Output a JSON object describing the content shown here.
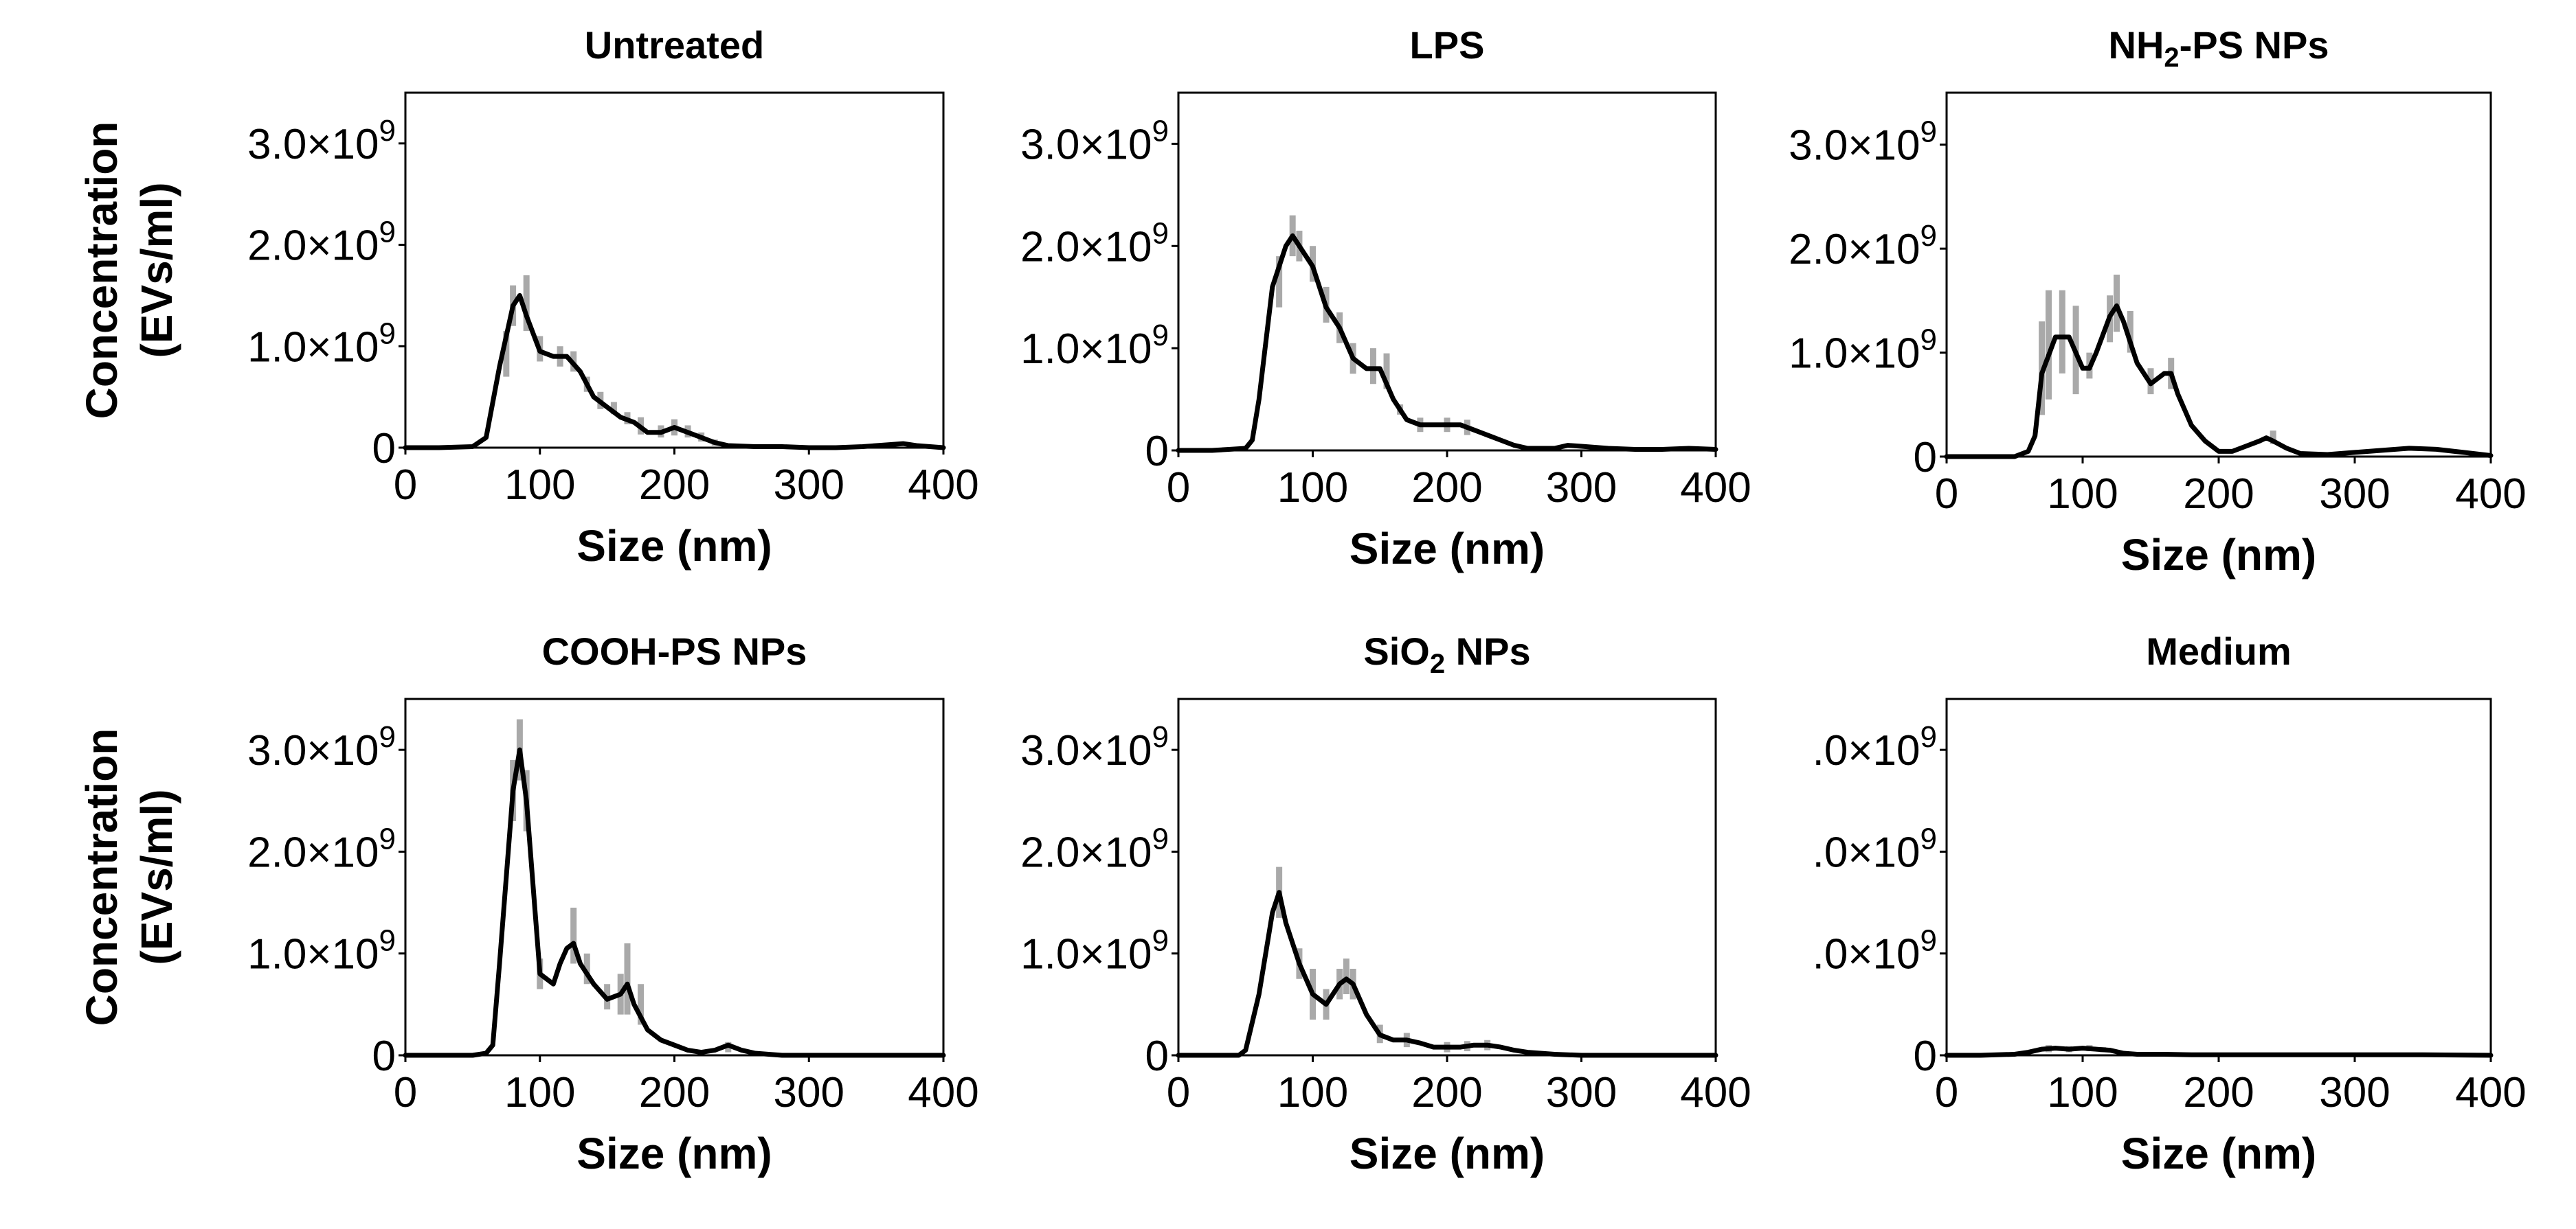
{
  "figure": {
    "description_colors": {
      "mean_line": "#000000",
      "error_bars": "#a9a9a9",
      "background": "#ffffff"
    }
  },
  "chart_data": [
    {
      "type": "line",
      "title_parts": [
        {
          "text": "Untreated"
        }
      ],
      "xlabel": "Size (nm)",
      "ylabel_lines": [
        "Concentration",
        "(EVs/ml)"
      ],
      "xlim": [
        0,
        400
      ],
      "ylim": [
        0,
        3500000000.0
      ],
      "xticks": [
        0,
        100,
        200,
        300,
        400
      ],
      "xtick_labels": [
        "0",
        "100",
        "200",
        "300",
        "400"
      ],
      "yticks": [
        0,
        1000000000.0,
        2000000000.0,
        3000000000.0
      ],
      "ytick_labels": [
        {
          "text": "0"
        },
        {
          "base": "1.0×10",
          "exp": "9"
        },
        {
          "base": "2.0×10",
          "exp": "9"
        },
        {
          "base": "3.0×10",
          "exp": "9"
        }
      ],
      "grid": false,
      "series": [
        {
          "name": "mean",
          "x": [
            0,
            25,
            50,
            60,
            70,
            80,
            85,
            90,
            100,
            110,
            120,
            130,
            140,
            150,
            160,
            170,
            180,
            190,
            200,
            210,
            220,
            230,
            240,
            260,
            280,
            300,
            320,
            340,
            360,
            370,
            380,
            400
          ],
          "y": [
            0,
            0,
            10000000.0,
            100000000.0,
            800000000.0,
            1400000000.0,
            1500000000.0,
            1300000000.0,
            950000000.0,
            900000000.0,
            900000000.0,
            750000000.0,
            500000000.0,
            400000000.0,
            300000000.0,
            250000000.0,
            150000000.0,
            150000000.0,
            200000000.0,
            150000000.0,
            100000000.0,
            50000000.0,
            20000000.0,
            10000000.0,
            10000000.0,
            0,
            0,
            10000000.0,
            30000000.0,
            40000000.0,
            20000000.0,
            0
          ]
        }
      ],
      "error_bars": {
        "x": [
          75,
          80,
          90,
          100,
          115,
          125,
          135,
          145,
          155,
          165,
          175,
          190,
          200,
          210,
          220,
          230
        ],
        "low": [
          700000000.0,
          1200000000.0,
          1150000000.0,
          850000000.0,
          800000000.0,
          750000000.0,
          550000000.0,
          380000000.0,
          330000000.0,
          230000000.0,
          130000000.0,
          100000000.0,
          120000000.0,
          100000000.0,
          60000000.0,
          20000000.0
        ],
        "high": [
          1150000000.0,
          1600000000.0,
          1700000000.0,
          1100000000.0,
          1000000000.0,
          950000000.0,
          700000000.0,
          550000000.0,
          450000000.0,
          350000000.0,
          300000000.0,
          220000000.0,
          280000000.0,
          220000000.0,
          150000000.0,
          80000000.0
        ]
      }
    },
    {
      "type": "line",
      "title_parts": [
        {
          "text": "LPS"
        }
      ],
      "xlabel": "Size (nm)",
      "ylabel_lines": [],
      "xlim": [
        0,
        400
      ],
      "ylim": [
        0,
        3500000000.0
      ],
      "xticks": [
        0,
        100,
        200,
        300,
        400
      ],
      "xtick_labels": [
        "0",
        "100",
        "200",
        "300",
        "400"
      ],
      "yticks": [
        0,
        1000000000.0,
        2000000000.0,
        3000000000.0
      ],
      "ytick_labels": [
        {
          "text": "0"
        },
        {
          "base": "1.0×10",
          "exp": "9"
        },
        {
          "base": "2.0×10",
          "exp": "9"
        },
        {
          "base": "3.0×10",
          "exp": "9"
        }
      ],
      "grid": false,
      "series": [
        {
          "name": "mean",
          "x": [
            0,
            25,
            50,
            55,
            60,
            70,
            80,
            85,
            90,
            100,
            110,
            120,
            130,
            140,
            150,
            160,
            170,
            180,
            190,
            200,
            210,
            220,
            230,
            240,
            250,
            260,
            280,
            290,
            300,
            320,
            340,
            360,
            380,
            400
          ],
          "y": [
            0,
            0,
            20000000.0,
            100000000.0,
            500000000.0,
            1600000000.0,
            2000000000.0,
            2100000000.0,
            2000000000.0,
            1800000000.0,
            1400000000.0,
            1200000000.0,
            900000000.0,
            800000000.0,
            800000000.0,
            500000000.0,
            300000000.0,
            250000000.0,
            250000000.0,
            250000000.0,
            250000000.0,
            200000000.0,
            150000000.0,
            100000000.0,
            50000000.0,
            20000000.0,
            20000000.0,
            50000000.0,
            40000000.0,
            20000000.0,
            10000000.0,
            10000000.0,
            20000000.0,
            10000000.0
          ]
        }
      ],
      "error_bars": {
        "x": [
          75,
          85,
          90,
          100,
          110,
          120,
          130,
          145,
          155,
          165,
          180,
          200,
          215
        ],
        "low": [
          1400000000.0,
          1900000000.0,
          1850000000.0,
          1650000000.0,
          1250000000.0,
          1050000000.0,
          750000000.0,
          650000000.0,
          600000000.0,
          350000000.0,
          180000000.0,
          180000000.0,
          150000000.0
        ],
        "high": [
          1900000000.0,
          2300000000.0,
          2150000000.0,
          2000000000.0,
          1600000000.0,
          1350000000.0,
          1050000000.0,
          1000000000.0,
          950000000.0,
          450000000.0,
          320000000.0,
          320000000.0,
          300000000.0
        ]
      }
    },
    {
      "type": "line",
      "title_parts": [
        {
          "text": "NH"
        },
        {
          "text": "2",
          "sub": true
        },
        {
          "text": "-PS NPs"
        }
      ],
      "xlabel": "Size (nm)",
      "ylabel_lines": [],
      "xlim": [
        0,
        400
      ],
      "ylim": [
        0,
        3500000000.0
      ],
      "xticks": [
        0,
        100,
        200,
        300,
        400
      ],
      "xtick_labels": [
        "0",
        "100",
        "200",
        "300",
        "400"
      ],
      "yticks": [
        0,
        1000000000.0,
        2000000000.0,
        3000000000.0
      ],
      "ytick_labels": [
        {
          "text": "0"
        },
        {
          "base": "1.0×10",
          "exp": "9"
        },
        {
          "base": "2.0×10",
          "exp": "9"
        },
        {
          "base": "3.0×10",
          "exp": "9"
        }
      ],
      "grid": false,
      "series": [
        {
          "name": "mean",
          "x": [
            0,
            25,
            50,
            60,
            65,
            70,
            80,
            90,
            100,
            105,
            110,
            120,
            125,
            130,
            140,
            150,
            160,
            165,
            170,
            180,
            190,
            200,
            210,
            220,
            230,
            235,
            240,
            250,
            260,
            280,
            300,
            320,
            340,
            360,
            380,
            400
          ],
          "y": [
            0,
            0,
            0,
            50000000.0,
            200000000.0,
            800000000.0,
            1150000000.0,
            1150000000.0,
            850000000.0,
            850000000.0,
            1000000000.0,
            1350000000.0,
            1450000000.0,
            1300000000.0,
            900000000.0,
            700000000.0,
            800000000.0,
            800000000.0,
            600000000.0,
            300000000.0,
            150000000.0,
            50000000.0,
            50000000.0,
            100000000.0,
            150000000.0,
            180000000.0,
            150000000.0,
            80000000.0,
            30000000.0,
            20000000.0,
            40000000.0,
            60000000.0,
            80000000.0,
            70000000.0,
            40000000.0,
            10000000.0
          ]
        }
      ],
      "error_bars": {
        "x": [
          70,
          75,
          85,
          95,
          105,
          120,
          125,
          135,
          150,
          165,
          240
        ],
        "low": [
          400000000.0,
          550000000.0,
          800000000.0,
          600000000.0,
          750000000.0,
          1100000000.0,
          1200000000.0,
          1000000000.0,
          600000000.0,
          650000000.0,
          120000000.0
        ],
        "high": [
          1300000000.0,
          1600000000.0,
          1600000000.0,
          1450000000.0,
          1000000000.0,
          1550000000.0,
          1750000000.0,
          1400000000.0,
          850000000.0,
          950000000.0,
          250000000.0
        ]
      }
    },
    {
      "type": "line",
      "title_parts": [
        {
          "text": "COOH-PS NPs"
        }
      ],
      "xlabel": "Size (nm)",
      "ylabel_lines": [
        "Concentration",
        "(EVs/ml)"
      ],
      "xlim": [
        0,
        400
      ],
      "ylim": [
        0,
        3500000000.0
      ],
      "xticks": [
        0,
        100,
        200,
        300,
        400
      ],
      "xtick_labels": [
        "0",
        "100",
        "200",
        "300",
        "400"
      ],
      "yticks": [
        0,
        1000000000.0,
        2000000000.0,
        3000000000.0
      ],
      "ytick_labels": [
        {
          "text": "0"
        },
        {
          "base": "1.0×10",
          "exp": "9"
        },
        {
          "base": "2.0×10",
          "exp": "9"
        },
        {
          "base": "3.0×10",
          "exp": "9"
        }
      ],
      "grid": false,
      "series": [
        {
          "name": "mean",
          "x": [
            0,
            25,
            50,
            60,
            65,
            70,
            80,
            85,
            90,
            100,
            110,
            115,
            120,
            125,
            130,
            140,
            150,
            160,
            165,
            170,
            180,
            190,
            200,
            210,
            220,
            230,
            240,
            250,
            260,
            280,
            300,
            320,
            340,
            360,
            380,
            400
          ],
          "y": [
            0,
            0,
            0,
            20000000.0,
            100000000.0,
            900000000.0,
            2600000000.0,
            3000000000.0,
            2500000000.0,
            800000000.0,
            700000000.0,
            900000000.0,
            1050000000.0,
            1100000000.0,
            900000000.0,
            700000000.0,
            550000000.0,
            600000000.0,
            700000000.0,
            500000000.0,
            250000000.0,
            150000000.0,
            100000000.0,
            50000000.0,
            30000000.0,
            50000000.0,
            100000000.0,
            50000000.0,
            20000000.0,
            0,
            0,
            0,
            0,
            0,
            0,
            0
          ]
        }
      ],
      "error_bars": {
        "x": [
          80,
          85,
          90,
          100,
          125,
          135,
          150,
          160,
          165,
          175,
          240
        ],
        "low": [
          2300000000.0,
          2700000000.0,
          2200000000.0,
          650000000.0,
          900000000.0,
          700000000.0,
          450000000.0,
          400000000.0,
          400000000.0,
          300000000.0,
          30000000.0
        ],
        "high": [
          2900000000.0,
          3300000000.0,
          2800000000.0,
          950000000.0,
          1450000000.0,
          1000000000.0,
          700000000.0,
          800000000.0,
          1100000000.0,
          700000000.0,
          130000000.0
        ]
      }
    },
    {
      "type": "line",
      "title_parts": [
        {
          "text": "SiO"
        },
        {
          "text": "2",
          "sub": true
        },
        {
          "text": " NPs"
        }
      ],
      "xlabel": "Size (nm)",
      "ylabel_lines": [],
      "xlim": [
        0,
        400
      ],
      "ylim": [
        0,
        3500000000.0
      ],
      "xticks": [
        0,
        100,
        200,
        300,
        400
      ],
      "xtick_labels": [
        "0",
        "100",
        "200",
        "300",
        "400"
      ],
      "yticks": [
        0,
        1000000000.0,
        2000000000.0,
        3000000000.0
      ],
      "ytick_labels": [
        {
          "text": "0"
        },
        {
          "base": "1.0×10",
          "exp": "9"
        },
        {
          "base": "2.0×10",
          "exp": "9"
        },
        {
          "base": "3.0×10",
          "exp": "9"
        }
      ],
      "grid": false,
      "series": [
        {
          "name": "mean",
          "x": [
            0,
            25,
            45,
            50,
            60,
            70,
            75,
            80,
            90,
            100,
            110,
            120,
            125,
            130,
            140,
            150,
            160,
            170,
            180,
            190,
            200,
            210,
            220,
            230,
            240,
            250,
            260,
            280,
            300,
            320,
            340,
            360,
            380,
            400
          ],
          "y": [
            0,
            0,
            0,
            50000000.0,
            600000000.0,
            1400000000.0,
            1600000000.0,
            1300000000.0,
            900000000.0,
            600000000.0,
            500000000.0,
            700000000.0,
            750000000.0,
            700000000.0,
            400000000.0,
            200000000.0,
            150000000.0,
            150000000.0,
            120000000.0,
            80000000.0,
            80000000.0,
            80000000.0,
            100000000.0,
            100000000.0,
            80000000.0,
            50000000.0,
            30000000.0,
            10000000.0,
            0,
            0,
            0,
            0,
            0,
            0
          ]
        }
      ],
      "error_bars": {
        "x": [
          75,
          90,
          100,
          110,
          120,
          125,
          130,
          150,
          170,
          200,
          215,
          230
        ],
        "low": [
          1350000000.0,
          750000000.0,
          350000000.0,
          350000000.0,
          550000000.0,
          600000000.0,
          550000000.0,
          120000000.0,
          80000000.0,
          30000000.0,
          40000000.0,
          50000000.0
        ],
        "high": [
          1850000000.0,
          1050000000.0,
          850000000.0,
          650000000.0,
          850000000.0,
          950000000.0,
          850000000.0,
          300000000.0,
          220000000.0,
          130000000.0,
          140000000.0,
          150000000.0
        ]
      }
    },
    {
      "type": "line",
      "title_parts": [
        {
          "text": "Medium"
        }
      ],
      "xlabel": "Size (nm)",
      "ylabel_lines": [],
      "xlim": [
        0,
        400
      ],
      "ylim": [
        0,
        3500000000.0
      ],
      "xticks": [
        0,
        100,
        200,
        300,
        400
      ],
      "xtick_labels": [
        "0",
        "100",
        "200",
        "300",
        "400"
      ],
      "yticks": [
        0,
        1000000000.0,
        2000000000.0,
        3000000000.0
      ],
      "ytick_labels": [
        {
          "text": "0"
        },
        {
          "base": ".0×10",
          "exp": "9"
        },
        {
          "base": ".0×10",
          "exp": "9"
        },
        {
          "base": ".0×10",
          "exp": "9"
        }
      ],
      "grid": false,
      "series": [
        {
          "name": "mean",
          "x": [
            0,
            25,
            50,
            60,
            70,
            80,
            90,
            100,
            110,
            120,
            130,
            140,
            160,
            180,
            200,
            250,
            300,
            350,
            400
          ],
          "y": [
            0,
            0,
            10000000.0,
            30000000.0,
            60000000.0,
            70000000.0,
            60000000.0,
            70000000.0,
            60000000.0,
            50000000.0,
            20000000.0,
            10000000.0,
            10000000.0,
            5000000.0,
            5000000.0,
            5000000.0,
            5000000.0,
            5000000.0,
            0
          ]
        }
      ],
      "error_bars": {
        "x": [
          75,
          90,
          105,
          115
        ],
        "low": [
          30000000.0,
          30000000.0,
          40000000.0,
          30000000.0
        ],
        "high": [
          100000000.0,
          90000000.0,
          100000000.0,
          80000000.0
        ]
      }
    }
  ]
}
